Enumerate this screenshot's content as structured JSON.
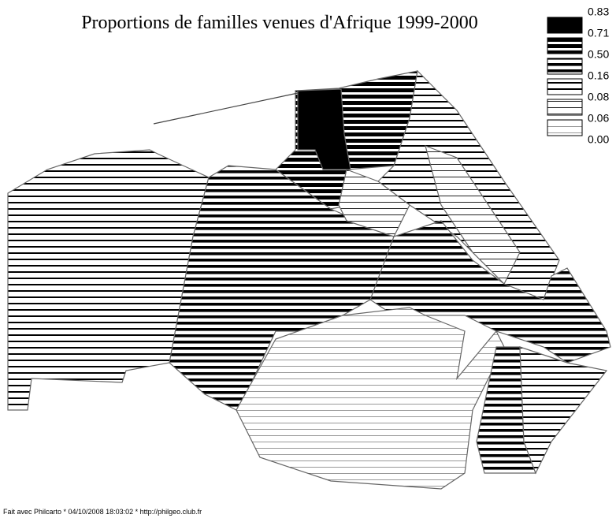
{
  "title": "Proportions de familles venues  d'Afrique 1999-2000",
  "legend": {
    "breaks": [
      "0.83",
      "0.71",
      "0.50",
      "0.16",
      "0.08",
      "0.06",
      "0.00"
    ]
  },
  "footer": "Fait avec Philcarto * 04/10/2008 18:03:02 * http://philgeo.club.fr"
}
